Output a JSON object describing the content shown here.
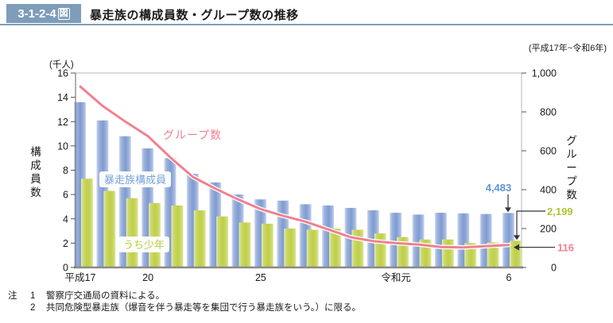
{
  "header": {
    "figure_label_main": "3-1-2-4",
    "figure_label_suffix": "図",
    "title": "暴走族の構成員数・グループ数の推移",
    "period": "(平成17年~令和6年)"
  },
  "chart_data": {
    "type": "bar+line",
    "title": "暴走族の構成員数・グループ数の推移",
    "categories": [
      "平成17",
      "平成18",
      "平成19",
      "平成20",
      "平成21",
      "平成22",
      "平成23",
      "平成24",
      "平成25",
      "平成26",
      "平成27",
      "平成28",
      "平成29",
      "平成30",
      "令和元",
      "令和2",
      "令和3",
      "令和4",
      "令和5",
      "令和6"
    ],
    "x_axis": {
      "tick_indices": [
        0,
        3,
        8,
        14,
        19
      ],
      "tick_labels": [
        "平成17",
        "20",
        "25",
        "令和元",
        "6"
      ]
    },
    "left_axis": {
      "unit": "(千人)",
      "title": "構成員数",
      "min": 0,
      "max": 16,
      "step": 2
    },
    "right_axis": {
      "title": "グループ数",
      "min": 0,
      "max": 1000,
      "step": 200,
      "tick_labels": [
        "0",
        "200",
        "400",
        "600",
        "800",
        "1,000"
      ]
    },
    "series": [
      {
        "name": "暴走族構成員",
        "type": "bar",
        "axis": "left",
        "unit": "千人",
        "color": "#8aa5d6",
        "values": [
          13.6,
          12.1,
          10.8,
          9.8,
          9.0,
          7.7,
          7.0,
          6.0,
          5.6,
          5.5,
          5.2,
          5.1,
          4.9,
          4.7,
          4.5,
          4.35,
          4.5,
          4.45,
          4.4,
          4.483
        ]
      },
      {
        "name": "うち少年",
        "type": "bar",
        "axis": "left",
        "unit": "千人",
        "color": "#c3d14c",
        "values": [
          7.3,
          6.3,
          5.7,
          5.3,
          5.1,
          4.7,
          4.2,
          3.7,
          3.6,
          3.2,
          3.1,
          3.2,
          3.1,
          2.8,
          2.5,
          2.3,
          2.3,
          2.0,
          2.05,
          2.199
        ]
      },
      {
        "name": "グループ数",
        "type": "line",
        "axis": "right",
        "color": "#f08090",
        "values": [
          930,
          830,
          750,
          675,
          565,
          465,
          405,
          350,
          300,
          265,
          235,
          195,
          155,
          135,
          125,
          118,
          105,
          103,
          110,
          116
        ]
      }
    ],
    "annotations": [
      {
        "text": "4,483",
        "series": "暴走族構成員",
        "color": "#5f93d8"
      },
      {
        "text": "2,199",
        "series": "うち少年",
        "color": "#aec332"
      },
      {
        "text": "116",
        "series": "グループ数",
        "color": "#f08090"
      }
    ],
    "legend_position": "in-plot",
    "grid": false
  },
  "notes": {
    "prefix": "注",
    "items": [
      {
        "no": "1",
        "text": "警察庁交通局の資料による。"
      },
      {
        "no": "2",
        "text": "共同危険型暴走族（爆音を伴う暴走等を集団で行う暴走族をいう。）に限る。"
      }
    ]
  }
}
